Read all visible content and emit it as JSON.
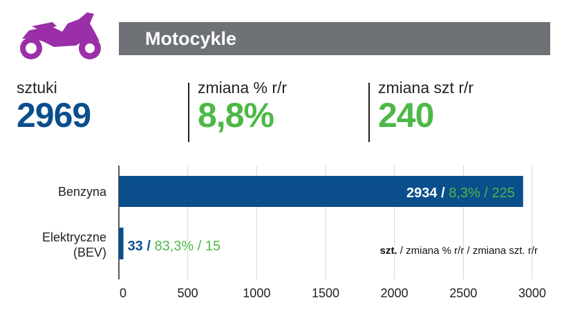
{
  "header": {
    "title": "Motocykle"
  },
  "colors": {
    "blue": "#0a4f8c",
    "green": "#4db848",
    "purple": "#9b2fa8",
    "header_bg": "#6e7175",
    "grid": "#d4d4d4"
  },
  "kpis": [
    {
      "label": "sztuki",
      "value": "2969",
      "color": "#0a4f8c"
    },
    {
      "label": "zmiana % r/r",
      "value": "8,8%",
      "color": "#4db848"
    },
    {
      "label": "zmiana szt r/r",
      "value": "240",
      "color": "#4db848"
    }
  ],
  "chart_data": {
    "type": "bar",
    "orientation": "horizontal",
    "categories": [
      "Benzyna",
      "Elektryczne (BEV)"
    ],
    "category_lines": [
      [
        "Benzyna"
      ],
      [
        "Elektryczne",
        "(BEV)"
      ]
    ],
    "values": [
      2934,
      33
    ],
    "change_pct": [
      "8,3%",
      "83,3%"
    ],
    "change_units": [
      "225",
      "15"
    ],
    "xlim": [
      0,
      3000
    ],
    "xticks": [
      0,
      500,
      1000,
      1500,
      2000,
      2500,
      3000
    ],
    "grid": true,
    "legend_note": {
      "bold": "szt.",
      "rest": " / zmiana % r/r / zmiana szt. r/r"
    }
  }
}
